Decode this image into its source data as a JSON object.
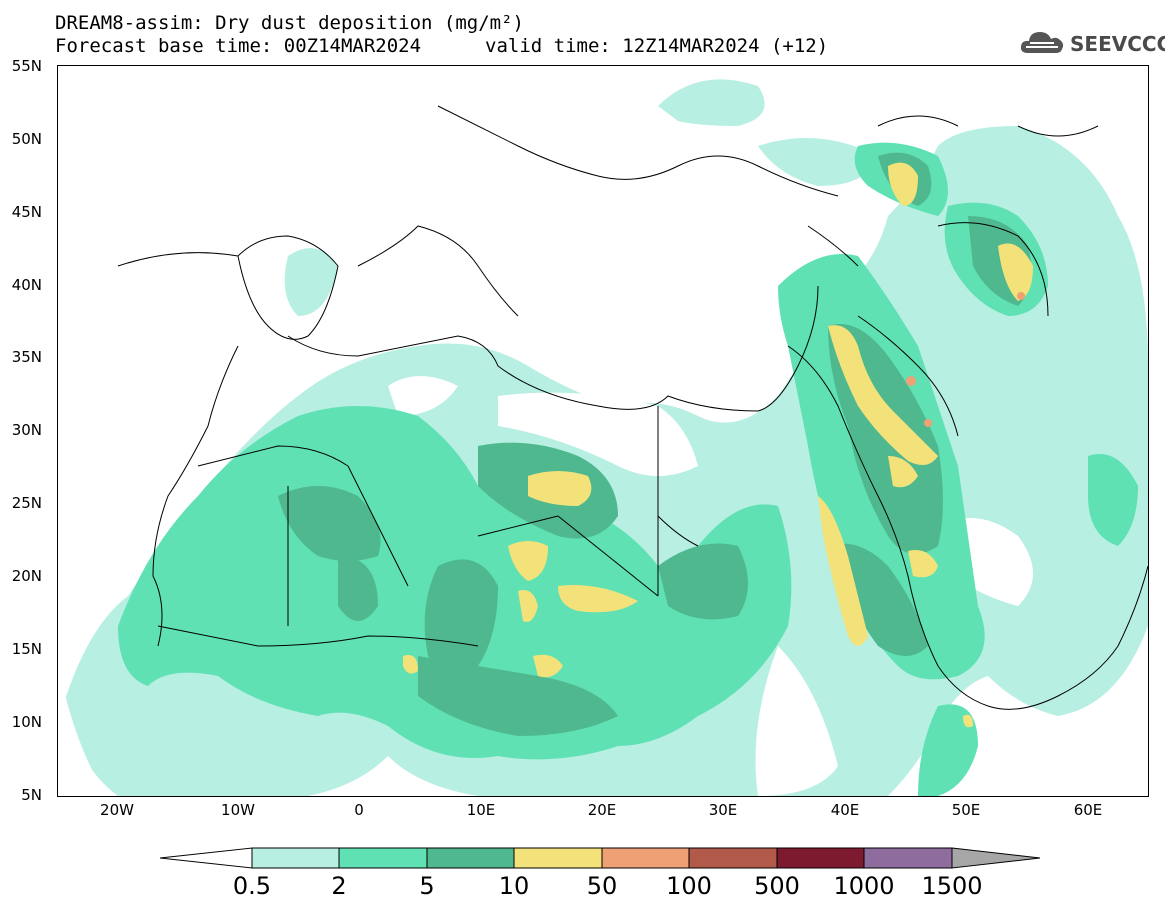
{
  "header": {
    "title_line1": "DREAM8-assim: Dry dust deposition (mg/m²)",
    "title_line2_left": "Forecast base time: 00Z14MAR2024",
    "title_line2_right": "valid time: 12Z14MAR2024 (+12)"
  },
  "logo": {
    "text": "SEEVCCC",
    "icon": "cloud-icon"
  },
  "map": {
    "lon_range": [
      -25,
      65
    ],
    "lat_range": [
      5,
      55
    ],
    "lat_ticks": [
      "55N",
      "50N",
      "45N",
      "40N",
      "35N",
      "30N",
      "25N",
      "20N",
      "15N",
      "10N",
      "5N"
    ],
    "lon_ticks": [
      "20W",
      "10W",
      "0",
      "10E",
      "20E",
      "30E",
      "40E",
      "50E",
      "60E"
    ]
  },
  "colorbar": {
    "labels": [
      "0.5",
      "2",
      "5",
      "10",
      "50",
      "100",
      "500",
      "1000",
      "1500"
    ],
    "colors": [
      "#b7efe2",
      "#5fe1b4",
      "#4fb88e",
      "#f3e27a",
      "#eda174",
      "#b25a4a",
      "#7d1a2f",
      "#8e6c9e",
      "#a7a7a7"
    ]
  }
}
